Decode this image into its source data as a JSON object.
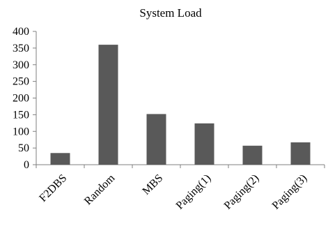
{
  "chart_data": {
    "type": "bar",
    "title": "System Load",
    "xlabel": "",
    "ylabel": "",
    "categories": [
      "F2DBS",
      "Random",
      "MBS",
      "Paging(1)",
      "Paging(2)",
      "Paging(3)"
    ],
    "values": [
      35,
      360,
      152,
      124,
      57,
      67
    ],
    "ylim": [
      0,
      400
    ],
    "yticks": [
      0,
      50,
      100,
      150,
      200,
      250,
      300,
      350,
      400
    ],
    "grid": false,
    "legend": "none",
    "bar_color": "#595959"
  }
}
